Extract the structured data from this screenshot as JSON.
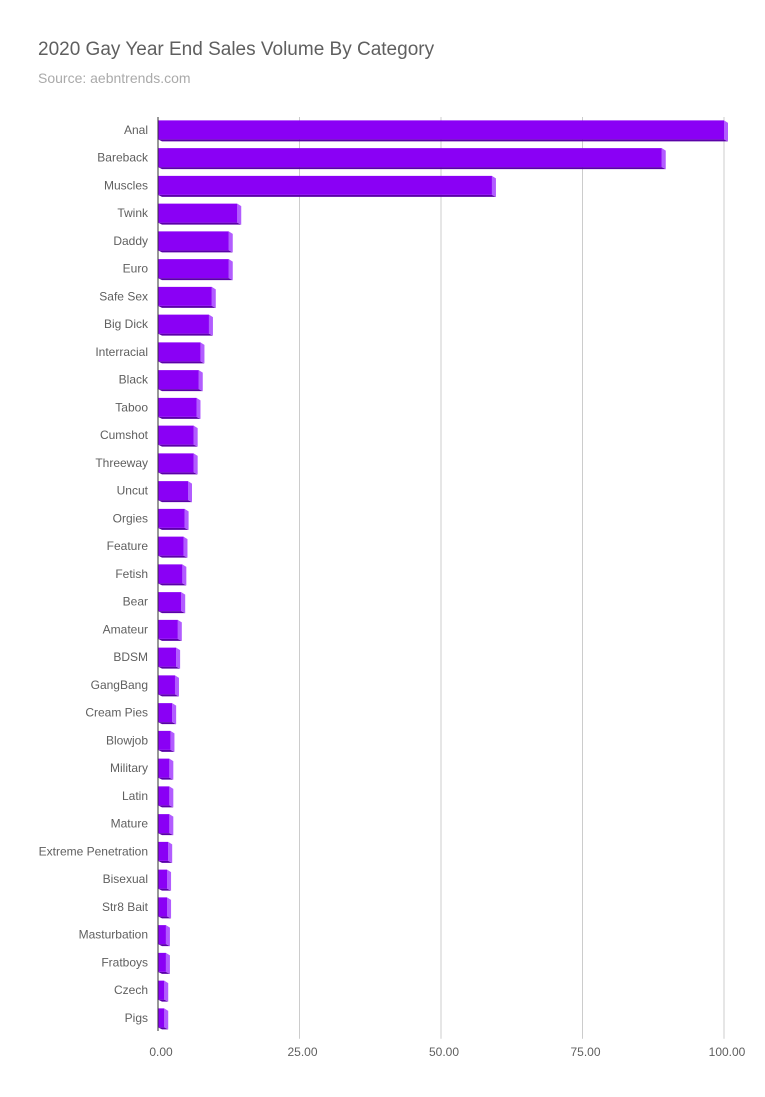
{
  "title": "2020 Gay Year End Sales Volume By Category",
  "subtitle": "Source: aebntrends.com",
  "chart_data": {
    "type": "bar",
    "orientation": "horizontal",
    "title": "2020 Gay Year End Sales Volume By Category",
    "subtitle": "Source: aebntrends.com",
    "xlabel": "",
    "ylabel": "",
    "xlim": [
      0,
      100
    ],
    "x_ticks": [
      "0.00",
      "25.00",
      "50.00",
      "75.00",
      "100.00"
    ],
    "grid": true,
    "legend": "none",
    "bar_color": "#8a00f5",
    "categories": [
      "Anal",
      "Bareback",
      "Muscles",
      "Twink",
      "Daddy",
      "Euro",
      "Safe Sex",
      "Big Dick",
      "Interracial",
      "Black",
      "Taboo",
      "Cumshot",
      "Threeway",
      "Uncut",
      "Orgies",
      "Feature",
      "Fetish",
      "Bear",
      "Amateur",
      "BDSM",
      "GangBang",
      "Cream Pies",
      "Blowjob",
      "Military",
      "Latin",
      "Mature",
      "Extreme Penetration",
      "Bisexual",
      "Str8 Bait",
      "Masturbation",
      "Fratboys",
      "Czech",
      "Pigs"
    ],
    "values": [
      100,
      89,
      59,
      14,
      12.5,
      12.5,
      9.5,
      9,
      7.5,
      7.2,
      6.8,
      6.3,
      6.3,
      5.3,
      4.7,
      4.5,
      4.3,
      4.1,
      3.5,
      3.2,
      3.0,
      2.5,
      2.2,
      2.0,
      2.0,
      2.0,
      1.8,
      1.6,
      1.6,
      1.4,
      1.4,
      1.1,
      1.1
    ]
  }
}
